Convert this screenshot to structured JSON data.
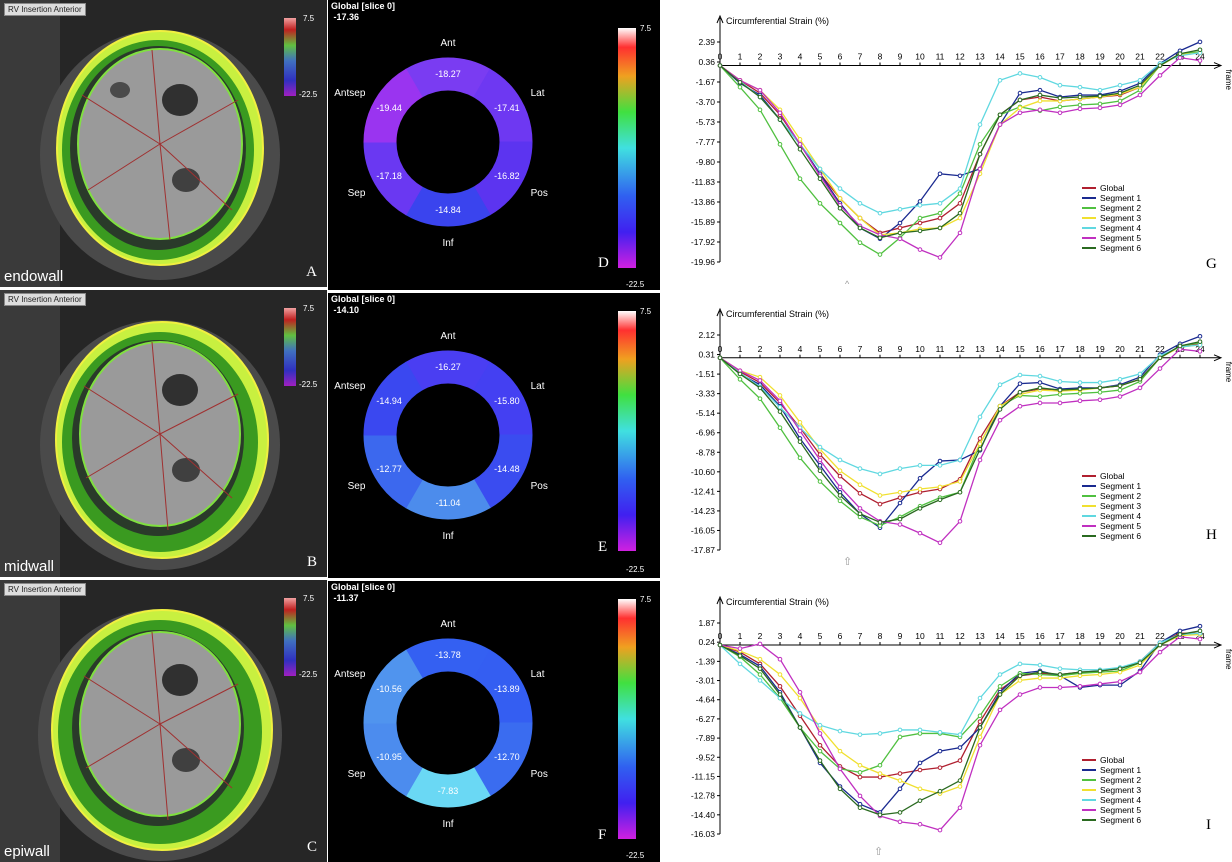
{
  "rows": [
    {
      "mri": {
        "tag": "RV Insertion Anterior",
        "wall_label": "endowall",
        "letter": "A",
        "cbar_max": "7.5",
        "cbar_min": "-22.5"
      },
      "bullseye": {
        "title": "Global [slice  0]",
        "global_value": "-17.36",
        "letter": "D",
        "cbar_max": "7.5",
        "cbar_min": "-22.5",
        "segments": [
          {
            "name": "Ant",
            "value": "-18.27",
            "color": "#7a3cf2"
          },
          {
            "name": "Lat",
            "value": "-17.41",
            "color": "#6e38f2"
          },
          {
            "name": "Pos",
            "value": "-16.82",
            "color": "#5c34f0"
          },
          {
            "name": "Inf",
            "value": "-14.84",
            "color": "#3a44ee"
          },
          {
            "name": "Sep",
            "value": "-17.18",
            "color": "#6a38f2"
          },
          {
            "name": "Antsep",
            "value": "-19.44",
            "color": "#9a34f0"
          }
        ]
      }
    },
    {
      "mri": {
        "tag": "RV Insertion Anterior",
        "wall_label": "midwall",
        "letter": "B",
        "cbar_max": "7.5",
        "cbar_min": "-22.5"
      },
      "bullseye": {
        "title": "Global [slice  0]",
        "global_value": "-14.10",
        "letter": "E",
        "cbar_max": "7.5",
        "cbar_min": "-22.5",
        "segments": [
          {
            "name": "Ant",
            "value": "-16.27",
            "color": "#4a3ef2"
          },
          {
            "name": "Lat",
            "value": "-15.80",
            "color": "#4440f2"
          },
          {
            "name": "Pos",
            "value": "-14.48",
            "color": "#3a4cf0"
          },
          {
            "name": "Inf",
            "value": "-11.04",
            "color": "#4c8cec"
          },
          {
            "name": "Sep",
            "value": "-12.77",
            "color": "#3c68ee"
          },
          {
            "name": "Antsep",
            "value": "-14.94",
            "color": "#3a48f0"
          }
        ]
      }
    },
    {
      "mri": {
        "tag": "RV Insertion Anterior",
        "wall_label": "epiwall",
        "letter": "C",
        "cbar_max": "7.5",
        "cbar_min": "-22.5"
      },
      "bullseye": {
        "title": "Global [slice  0]",
        "global_value": "-11.37",
        "letter": "F",
        "cbar_max": "7.5",
        "cbar_min": "-22.5",
        "segments": [
          {
            "name": "Ant",
            "value": "-13.78",
            "color": "#3460f2"
          },
          {
            "name": "Lat",
            "value": "-13.89",
            "color": "#345ef2"
          },
          {
            "name": "Pos",
            "value": "-12.70",
            "color": "#3a6cf0"
          },
          {
            "name": "Inf",
            "value": "-7.83",
            "color": "#6ad8f4"
          },
          {
            "name": "Sep",
            "value": "-10.95",
            "color": "#4c8cee"
          },
          {
            "name": "Antsep",
            "value": "-10.56",
            "color": "#5094ee"
          }
        ]
      }
    }
  ],
  "chart_data": [
    {
      "type": "line",
      "letter": "G",
      "ylabel": "Circumferential Strain (%)",
      "xlabel": "frame",
      "x": [
        0,
        1,
        2,
        3,
        4,
        5,
        6,
        7,
        8,
        9,
        10,
        11,
        12,
        13,
        14,
        15,
        16,
        17,
        18,
        19,
        20,
        21,
        22,
        23,
        24
      ],
      "y_ticks": [
        "2.39",
        "0.36",
        "-1.67",
        "-3.70",
        "-5.73",
        "-7.77",
        "-9.80",
        "-11.83",
        "-13.86",
        "-15.89",
        "-17.92",
        "-19.96"
      ],
      "ylim": [
        -19.96,
        2.39
      ],
      "series": [
        {
          "name": "Global",
          "color": "#b02030",
          "values": [
            0,
            -1.5,
            -2.8,
            -5,
            -8,
            -11,
            -13.5,
            -15.5,
            -17,
            -16.5,
            -16,
            -15.5,
            -14,
            -9,
            -5,
            -3.5,
            -3.2,
            -3.6,
            -3.4,
            -3.2,
            -3.0,
            -2.2,
            0,
            1.2,
            1.3
          ]
        },
        {
          "name": "Segment 1",
          "color": "#1a2a90",
          "values": [
            0,
            -1.8,
            -3,
            -5.5,
            -8,
            -11,
            -14,
            -16.5,
            -17.6,
            -16,
            -13.8,
            -11,
            -11.2,
            -10.5,
            -6,
            -2.8,
            -2.5,
            -3.2,
            -3,
            -3,
            -2.6,
            -1.8,
            0.2,
            1.5,
            2.4
          ]
        },
        {
          "name": "Segment 2",
          "color": "#50c040",
          "values": [
            0,
            -2.2,
            -4.5,
            -8,
            -11.5,
            -14,
            -16,
            -18,
            -19.2,
            -17.5,
            -15.5,
            -15,
            -13,
            -8,
            -5,
            -4.2,
            -4.6,
            -4.2,
            -4,
            -3.9,
            -3.6,
            -2.5,
            0,
            1.2,
            1.4
          ]
        },
        {
          "name": "Segment 3",
          "color": "#f0e030",
          "values": [
            0,
            -1.5,
            -2.5,
            -4.5,
            -7.5,
            -10.5,
            -13.5,
            -15.5,
            -17.2,
            -17,
            -16.6,
            -16.5,
            -15.5,
            -11,
            -6,
            -4.3,
            -3.6,
            -3.6,
            -3.4,
            -3.2,
            -2.9,
            -2.2,
            0,
            1.1,
            1.3
          ]
        },
        {
          "name": "Segment 4",
          "color": "#60d8e0",
          "values": [
            0,
            -1.6,
            -3.2,
            -5.5,
            -8,
            -10.5,
            -12.5,
            -14,
            -15,
            -14.6,
            -14.2,
            -14,
            -12.5,
            -6,
            -1.5,
            -0.8,
            -1.2,
            -2,
            -2.2,
            -2.5,
            -2,
            -1.5,
            0.2,
            1,
            1.3
          ]
        },
        {
          "name": "Segment 5",
          "color": "#c030c0",
          "values": [
            0,
            -1.5,
            -2.5,
            -4.8,
            -8,
            -11.2,
            -14.2,
            -16.3,
            -17.2,
            -17.6,
            -18.7,
            -19.5,
            -17,
            -10.5,
            -6,
            -4.8,
            -4.5,
            -4.8,
            -4.4,
            -4.3,
            -4,
            -3,
            -1,
            0.8,
            0.5
          ]
        },
        {
          "name": "Segment 6",
          "color": "#2a6a20",
          "values": [
            0,
            -1.7,
            -3.2,
            -5.5,
            -8.5,
            -11.5,
            -14.5,
            -16.5,
            -17.5,
            -17,
            -16.8,
            -16.5,
            -15,
            -9,
            -5,
            -3.5,
            -3,
            -3.3,
            -3.2,
            -3.1,
            -2.8,
            -2,
            0,
            1.2,
            1.6
          ]
        }
      ]
    },
    {
      "type": "line",
      "letter": "H",
      "ylabel": "Circumferential Strain (%)",
      "xlabel": "frame",
      "x": [
        0,
        1,
        2,
        3,
        4,
        5,
        6,
        7,
        8,
        9,
        10,
        11,
        12,
        13,
        14,
        15,
        16,
        17,
        18,
        19,
        20,
        21,
        22,
        23,
        24
      ],
      "y_ticks": [
        "2.12",
        "0.31",
        "-1.51",
        "-3.33",
        "-5.14",
        "-6.96",
        "-8.78",
        "-10.60",
        "-12.41",
        "-14.23",
        "-16.05",
        "-17.87"
      ],
      "ylim": [
        -17.87,
        2.12
      ],
      "series": [
        {
          "name": "Global",
          "color": "#b02030",
          "values": [
            0,
            -1.3,
            -2.3,
            -4.2,
            -6.5,
            -9,
            -11,
            -12.6,
            -13.6,
            -13,
            -12.5,
            -12.2,
            -11.3,
            -7.5,
            -4.5,
            -3.2,
            -2.9,
            -3.1,
            -2.9,
            -2.8,
            -2.6,
            -2,
            0,
            1.1,
            1.3
          ]
        },
        {
          "name": "Segment 1",
          "color": "#1a2a90",
          "values": [
            0,
            -1.5,
            -2.5,
            -4.5,
            -7.5,
            -10,
            -12.5,
            -14.5,
            -15.8,
            -13.5,
            -11.2,
            -9.6,
            -9.5,
            -8.6,
            -4.5,
            -2.4,
            -2.3,
            -2.9,
            -2.8,
            -2.8,
            -2.5,
            -1.8,
            0.3,
            1.3,
            2
          ]
        },
        {
          "name": "Segment 2",
          "color": "#50c040",
          "values": [
            0,
            -2,
            -3.8,
            -6.5,
            -9.3,
            -11.5,
            -13.3,
            -14.8,
            -15.6,
            -14.8,
            -13.8,
            -13,
            -12.5,
            -8,
            -4.5,
            -3.5,
            -3.6,
            -3.4,
            -3.3,
            -3.2,
            -3,
            -2.2,
            0,
            1.1,
            1.4
          ]
        },
        {
          "name": "Segment 3",
          "color": "#f0e030",
          "values": [
            0,
            -1.2,
            -1.8,
            -3.5,
            -6,
            -8.5,
            -10.5,
            -11.8,
            -12.8,
            -12.5,
            -12.2,
            -12,
            -11.5,
            -8,
            -4.5,
            -3.4,
            -3,
            -3.1,
            -3,
            -2.8,
            -2.6,
            -2,
            0,
            1,
            1.2
          ]
        },
        {
          "name": "Segment 4",
          "color": "#60d8e0",
          "values": [
            0,
            -1.4,
            -2.7,
            -4.6,
            -6.5,
            -8.3,
            -9.5,
            -10.3,
            -10.8,
            -10.3,
            -10,
            -10,
            -9.5,
            -5.5,
            -2.5,
            -1.6,
            -1.7,
            -2.2,
            -2.3,
            -2.3,
            -2,
            -1.5,
            0.2,
            1,
            1.2
          ]
        },
        {
          "name": "Segment 5",
          "color": "#c030c0",
          "values": [
            0,
            -1.2,
            -2.1,
            -4,
            -6.8,
            -9.5,
            -12,
            -14,
            -15.2,
            -15.5,
            -16.3,
            -17.2,
            -15.2,
            -9.5,
            -5.8,
            -4.5,
            -4.2,
            -4.2,
            -4,
            -3.9,
            -3.6,
            -2.8,
            -1,
            0.8,
            0.6
          ]
        },
        {
          "name": "Segment 6",
          "color": "#2a6a20",
          "values": [
            0,
            -1.5,
            -2.8,
            -5,
            -7.8,
            -10.5,
            -12.8,
            -14.5,
            -15.3,
            -15,
            -14,
            -13.2,
            -12.5,
            -8.5,
            -4.8,
            -3.2,
            -2.8,
            -3,
            -2.9,
            -2.8,
            -2.6,
            -2,
            0,
            1.1,
            1.5
          ]
        }
      ]
    },
    {
      "type": "line",
      "letter": "I",
      "ylabel": "Circumferential Strain (%)",
      "xlabel": "frame",
      "x": [
        0,
        1,
        2,
        3,
        4,
        5,
        6,
        7,
        8,
        9,
        10,
        11,
        12,
        13,
        14,
        15,
        16,
        17,
        18,
        19,
        20,
        21,
        22,
        23,
        24
      ],
      "y_ticks": [
        "1.87",
        "0.24",
        "-1.39",
        "-3.01",
        "-4.64",
        "-6.27",
        "-7.89",
        "-9.52",
        "-11.15",
        "-12.78",
        "-14.40",
        "-16.03"
      ],
      "ylim": [
        -16.03,
        1.87
      ],
      "series": [
        {
          "name": "Global",
          "color": "#b02030",
          "values": [
            0,
            -0.6,
            -1.6,
            -3.5,
            -6,
            -8.5,
            -10.3,
            -11.2,
            -11.2,
            -10.9,
            -10.6,
            -10.4,
            -9.8,
            -6.5,
            -3.8,
            -2.6,
            -2.4,
            -2.5,
            -2.3,
            -2.2,
            -2.0,
            -1.4,
            0.2,
            1.0,
            1.0
          ]
        },
        {
          "name": "Segment 1",
          "color": "#1a2a90",
          "values": [
            0,
            -0.8,
            -1.8,
            -4,
            -7,
            -10,
            -12,
            -13.5,
            -14.2,
            -12.2,
            -10,
            -9,
            -8.7,
            -7,
            -4,
            -2.4,
            -2.2,
            -2.6,
            -3.6,
            -3.4,
            -3.4,
            -2.2,
            0.2,
            1.2,
            1.6
          ]
        },
        {
          "name": "Segment 2",
          "color": "#50c040",
          "values": [
            0,
            -1,
            -2.5,
            -4.5,
            -7,
            -9,
            -10.5,
            -10.8,
            -10.2,
            -7.8,
            -7.5,
            -7.5,
            -7.8,
            -6,
            -3.5,
            -2.4,
            -2.5,
            -2.6,
            -2.4,
            -2.3,
            -2.2,
            -1.5,
            0,
            0.9,
            1
          ]
        },
        {
          "name": "Segment 3",
          "color": "#f0e030",
          "values": [
            0,
            -0.5,
            -1.2,
            -2.5,
            -4.5,
            -7,
            -9,
            -10.2,
            -10.9,
            -11.5,
            -12.2,
            -12.6,
            -12,
            -7.8,
            -4.2,
            -3,
            -2.8,
            -2.8,
            -2.6,
            -2.5,
            -2.3,
            -1.7,
            0,
            0.8,
            0.9
          ]
        },
        {
          "name": "Segment 4",
          "color": "#60d8e0",
          "values": [
            0,
            -1.6,
            -3,
            -4.5,
            -5.8,
            -6.8,
            -7.3,
            -7.6,
            -7.5,
            -7.2,
            -7.2,
            -7.4,
            -7.6,
            -4.5,
            -2.5,
            -1.6,
            -1.7,
            -2,
            -2.1,
            -2.1,
            -1.9,
            -1.4,
            0.2,
            0.9,
            1
          ]
        },
        {
          "name": "Segment 5",
          "color": "#c030c0",
          "values": [
            0,
            -0.3,
            0.1,
            -1.2,
            -4,
            -7.5,
            -10.5,
            -12.8,
            -14.5,
            -15,
            -15.2,
            -15.7,
            -13.8,
            -8.5,
            -5.5,
            -4.2,
            -3.6,
            -3.6,
            -3.5,
            -3.3,
            -3.1,
            -2.3,
            -0.6,
            0.7,
            0.5
          ]
        },
        {
          "name": "Segment 6",
          "color": "#2a6a20",
          "values": [
            0,
            -0.9,
            -2,
            -4.2,
            -7,
            -9.8,
            -12.2,
            -13.8,
            -14.4,
            -14.2,
            -13.2,
            -12.4,
            -11.5,
            -7,
            -4.2,
            -2.6,
            -2.3,
            -2.5,
            -2.3,
            -2.2,
            -2,
            -1.5,
            0,
            0.9,
            1.2
          ]
        }
      ]
    }
  ]
}
